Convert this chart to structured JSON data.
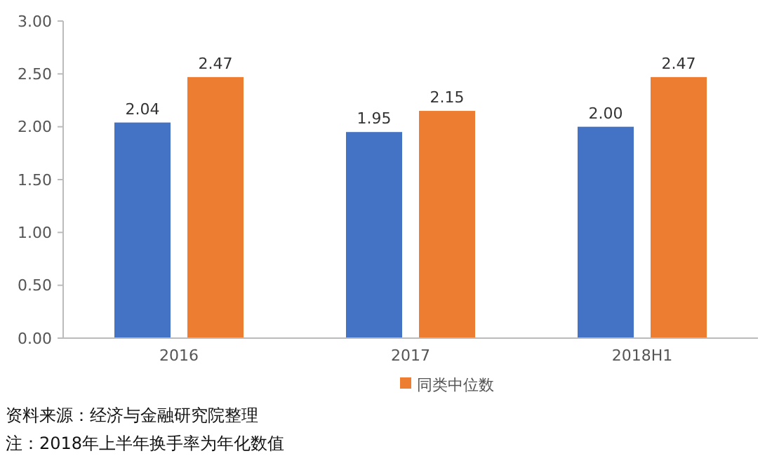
{
  "chart_data": {
    "type": "bar",
    "categories": [
      "2016",
      "2017",
      "2018H1"
    ],
    "series": [
      {
        "color": "#4472c4",
        "values": [
          2.04,
          1.95,
          2.0
        ],
        "value_labels": [
          "2.04",
          "1.95",
          "2.00"
        ]
      },
      {
        "name": "同类中位数",
        "color": "#ed7d31",
        "values": [
          2.47,
          2.15,
          2.47
        ],
        "value_labels": [
          "2.47",
          "2.15",
          "2.47"
        ]
      }
    ],
    "ylim": [
      0,
      3
    ],
    "yticks": [
      {
        "value": 0,
        "label": "0.00"
      },
      {
        "value": 0.5,
        "label": "0.50"
      },
      {
        "value": 1,
        "label": "1.00"
      },
      {
        "value": 1.5,
        "label": "1.50"
      },
      {
        "value": 2,
        "label": "2.00"
      },
      {
        "value": 2.5,
        "label": "2.50"
      },
      {
        "value": 3,
        "label": "3.00"
      }
    ],
    "grid": false,
    "legend": "bottom",
    "annotations": [
      "资料来源：经济与金融研究院整理",
      "注：2018年上半年换手率为年化数值"
    ]
  }
}
